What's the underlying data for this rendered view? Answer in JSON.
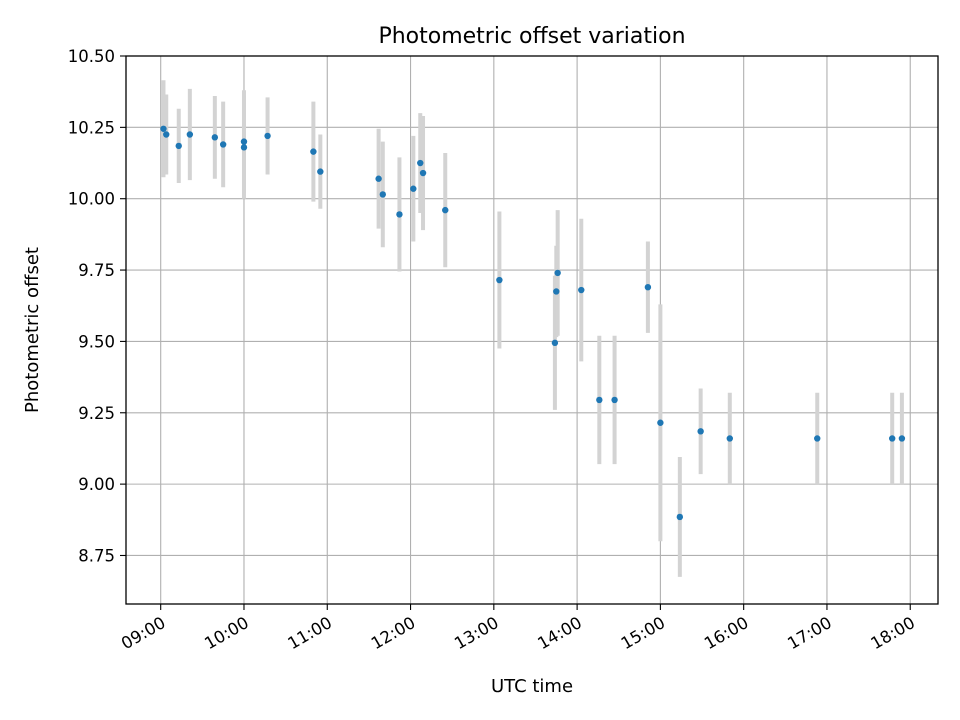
{
  "chart_data": {
    "type": "scatter",
    "title": "Photometric offset variation",
    "xlabel": "UTC time",
    "ylabel": "Photometric offset",
    "x_tick_labels": [
      "09:00",
      "10:00",
      "11:00",
      "12:00",
      "13:00",
      "14:00",
      "15:00",
      "16:00",
      "17:00",
      "18:00"
    ],
    "x_ticks": [
      "09:00",
      "10:00",
      "11:00",
      "12:00",
      "13:00",
      "14:00",
      "15:00",
      "16:00",
      "17:00",
      "18:00"
    ],
    "xlim": [
      "08:35",
      "18:20"
    ],
    "y_ticks": [
      8.75,
      9.0,
      9.25,
      9.5,
      9.75,
      10.0,
      10.25,
      10.5
    ],
    "y_tick_labels": [
      "8.75",
      "9.00",
      "9.25",
      "9.50",
      "9.75",
      "10.00",
      "10.25",
      "10.50"
    ],
    "ylim": [
      8.58,
      10.5
    ],
    "grid": true,
    "colors": {
      "point": "#1f77b4",
      "errorbar": "#d3d3d3"
    },
    "points": [
      {
        "x": "09:02",
        "y": 10.245,
        "err": 0.17
      },
      {
        "x": "09:04",
        "y": 10.225,
        "err": 0.14
      },
      {
        "x": "09:13",
        "y": 10.185,
        "err": 0.13
      },
      {
        "x": "09:21",
        "y": 10.225,
        "err": 0.16
      },
      {
        "x": "09:39",
        "y": 10.215,
        "err": 0.145
      },
      {
        "x": "09:45",
        "y": 10.19,
        "err": 0.15
      },
      {
        "x": "10:00",
        "y": 10.2,
        "err": 0.18
      },
      {
        "x": "10:00",
        "y": 10.18,
        "err": 0.18
      },
      {
        "x": "10:17",
        "y": 10.22,
        "err": 0.135
      },
      {
        "x": "10:50",
        "y": 10.165,
        "err": 0.175
      },
      {
        "x": "10:55",
        "y": 10.095,
        "err": 0.13
      },
      {
        "x": "11:37",
        "y": 10.07,
        "err": 0.175
      },
      {
        "x": "11:40",
        "y": 10.015,
        "err": 0.185
      },
      {
        "x": "11:52",
        "y": 9.945,
        "err": 0.2
      },
      {
        "x": "12:02",
        "y": 10.035,
        "err": 0.185
      },
      {
        "x": "12:07",
        "y": 10.125,
        "err": 0.175
      },
      {
        "x": "12:09",
        "y": 10.09,
        "err": 0.2
      },
      {
        "x": "12:25",
        "y": 9.96,
        "err": 0.2
      },
      {
        "x": "13:04",
        "y": 9.715,
        "err": 0.24
      },
      {
        "x": "13:44",
        "y": 9.495,
        "err": 0.235
      },
      {
        "x": "13:45",
        "y": 9.675,
        "err": 0.16
      },
      {
        "x": "13:46",
        "y": 9.74,
        "err": 0.22
      },
      {
        "x": "14:03",
        "y": 9.68,
        "err": 0.25
      },
      {
        "x": "14:16",
        "y": 9.295,
        "err": 0.225
      },
      {
        "x": "14:27",
        "y": 9.295,
        "err": 0.225
      },
      {
        "x": "14:51",
        "y": 9.69,
        "err": 0.16
      },
      {
        "x": "15:00",
        "y": 9.215,
        "err": 0.415
      },
      {
        "x": "15:14",
        "y": 8.885,
        "err": 0.21
      },
      {
        "x": "15:29",
        "y": 9.185,
        "err": 0.15
      },
      {
        "x": "15:50",
        "y": 9.16,
        "err": 0.16
      },
      {
        "x": "16:53",
        "y": 9.16,
        "err": 0.16
      },
      {
        "x": "17:47",
        "y": 9.16,
        "err": 0.16
      },
      {
        "x": "17:54",
        "y": 9.16,
        "err": 0.16
      }
    ]
  }
}
